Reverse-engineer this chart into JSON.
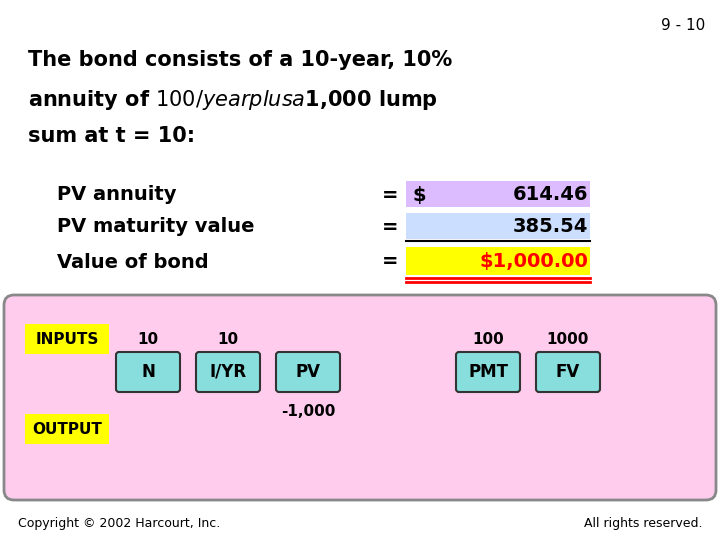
{
  "slide_number": "9 - 10",
  "background_color": "#ffffff",
  "title_line1": "The bond consists of a 10-year, 10%",
  "title_line2": "annuity of $100/year plus a $1,000 lump",
  "title_line3": "sum at t = 10:",
  "pv_annuity_label": "PV annuity",
  "pv_annuity_dollar": "$",
  "pv_annuity_value": "614.46",
  "pv_annuity_bg": "#ddbbff",
  "pv_maturity_label": "PV maturity value",
  "pv_maturity_value": "385.54",
  "pv_maturity_bg": "#ccdeff",
  "value_bond_label": "Value of bond",
  "value_bond_value": "$1,000.00",
  "value_bond_bg": "#ffff00",
  "value_bond_color": "#ff0000",
  "underline_color": "#ff0000",
  "calculator_bg": "#ffccee",
  "calculator_border": "#888888",
  "inputs_label": "INPUTS",
  "inputs_bg": "#ffff00",
  "output_label": "OUTPUT",
  "output_bg": "#ffff00",
  "button_bg": "#88dddd",
  "button_border": "#333333",
  "buttons": [
    "N",
    "I/YR",
    "PV",
    "PMT",
    "FV"
  ],
  "inputs_above": [
    "10",
    "10",
    "",
    "100",
    "1000"
  ],
  "output_pv": "-1,000",
  "copyright": "Copyright © 2002 Harcourt, Inc.",
  "rights": "All rights reserved."
}
